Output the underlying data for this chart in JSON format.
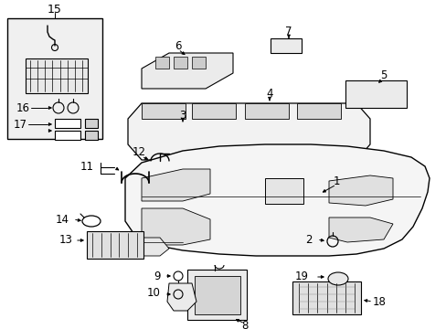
{
  "bg_color": "#ffffff",
  "line_color": "#000000",
  "fig_width": 4.89,
  "fig_height": 3.6,
  "dpi": 100,
  "font_size": 8.5
}
